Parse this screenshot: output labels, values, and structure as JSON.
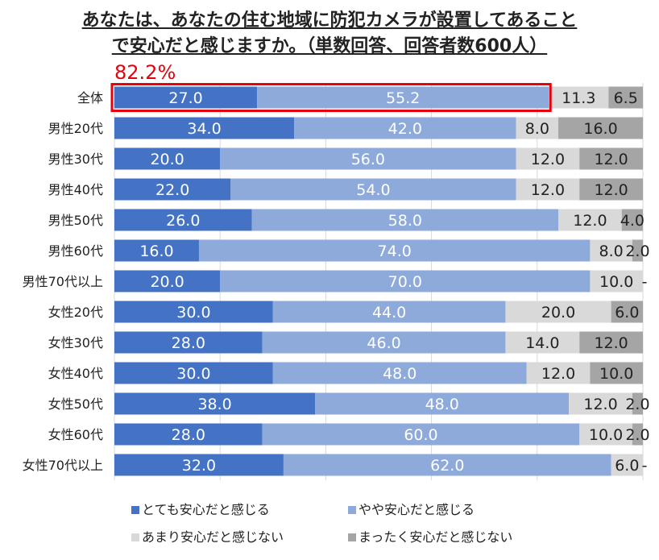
{
  "title_lines": [
    "あなたは、あなたの住む地域に防犯カメラが設置してあること",
    "で安心だと感じますか。（単数回答、回答者数600人）"
  ],
  "highlight": {
    "text": "82.2%",
    "color": "#e8000b",
    "row": "全体",
    "value": 82.2
  },
  "chart_data": {
    "type": "bar",
    "orientation": "horizontal",
    "stacked": true,
    "categories": [
      "全体",
      "男性20代",
      "男性30代",
      "男性40代",
      "男性50代",
      "男性60代",
      "男性70代以上",
      "女性20代",
      "女性30代",
      "女性40代",
      "女性50代",
      "女性60代",
      "女性70代以上"
    ],
    "series": [
      {
        "name": "とても安心だと感じる",
        "color": "#4472c4",
        "label_color": "#ffffff",
        "values": [
          27.0,
          34.0,
          20.0,
          22.0,
          26.0,
          16.0,
          20.0,
          30.0,
          28.0,
          30.0,
          38.0,
          28.0,
          32.0
        ]
      },
      {
        "name": "やや安心だと感じる",
        "color": "#8eaadb",
        "label_color": "#ffffff",
        "values": [
          55.2,
          42.0,
          56.0,
          54.0,
          58.0,
          74.0,
          70.0,
          44.0,
          46.0,
          48.0,
          48.0,
          60.0,
          62.0
        ]
      },
      {
        "name": "あまり安心だと感じない",
        "color": "#d9d9d9",
        "label_color": "#222222",
        "values": [
          11.3,
          8.0,
          12.0,
          12.0,
          12.0,
          8.0,
          10.0,
          20.0,
          14.0,
          12.0,
          12.0,
          10.0,
          6.0
        ]
      },
      {
        "name": "まったく安心だと感じない",
        "color": "#a5a5a5",
        "label_color": "#222222",
        "values": [
          6.5,
          16.0,
          12.0,
          12.0,
          4.0,
          2.0,
          0,
          6.0,
          12.0,
          10.0,
          2.0,
          2.0,
          0
        ]
      }
    ],
    "xlim": [
      0,
      100
    ],
    "grid": true,
    "legend": "bottom",
    "zero_label": "-"
  }
}
